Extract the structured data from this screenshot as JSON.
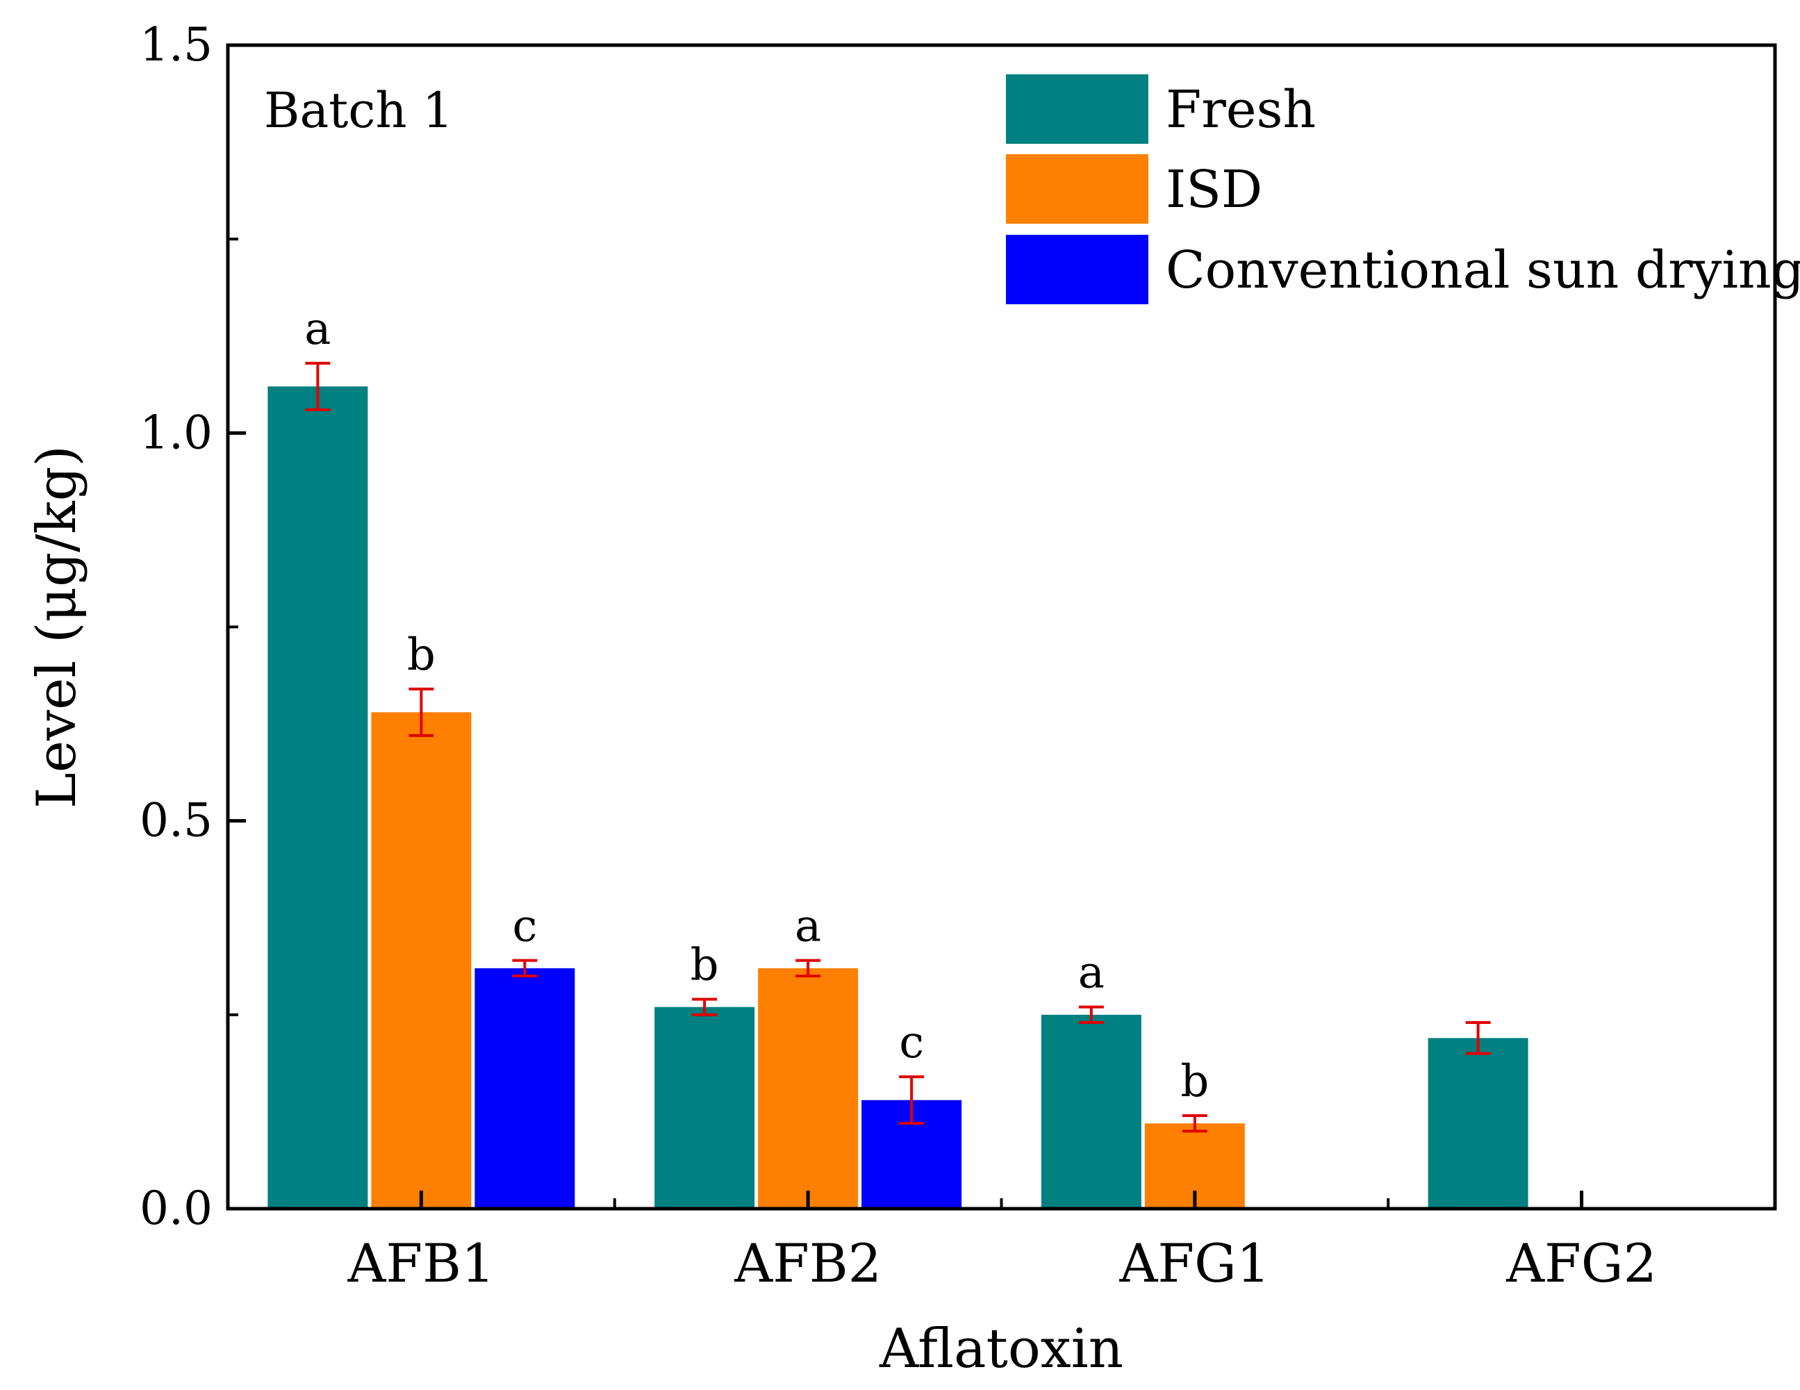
{
  "chart_data": {
    "type": "bar",
    "panel_label": "Batch 1",
    "xlabel": "Aflatoxin",
    "ylabel": "Level (μg/kg)",
    "ylim": [
      0,
      1.5
    ],
    "yticks": [
      "0.0",
      "0.5",
      "1.0",
      "1.5"
    ],
    "categories": [
      "AFB1",
      "AFB2",
      "AFG1",
      "AFG2"
    ],
    "legend_position": "top-right",
    "series": [
      {
        "name": "Fresh",
        "color": "#008080",
        "values": [
          1.06,
          0.26,
          0.25,
          0.22
        ],
        "errors": [
          0.03,
          0.01,
          0.01,
          0.02
        ],
        "significance": [
          "a",
          "b",
          "a",
          ""
        ]
      },
      {
        "name": "ISD",
        "color": "#ff8000",
        "values": [
          0.64,
          0.31,
          0.11,
          null
        ],
        "errors": [
          0.03,
          0.01,
          0.01,
          null
        ],
        "significance": [
          "b",
          "a",
          "b",
          ""
        ]
      },
      {
        "name": "Conventional sun drying",
        "color": "#0000ff",
        "values": [
          0.31,
          0.14,
          null,
          null
        ],
        "errors": [
          0.01,
          0.03,
          null,
          null
        ],
        "significance": [
          "c",
          "c",
          "",
          ""
        ]
      }
    ],
    "error_bar_color": "#e00000"
  }
}
